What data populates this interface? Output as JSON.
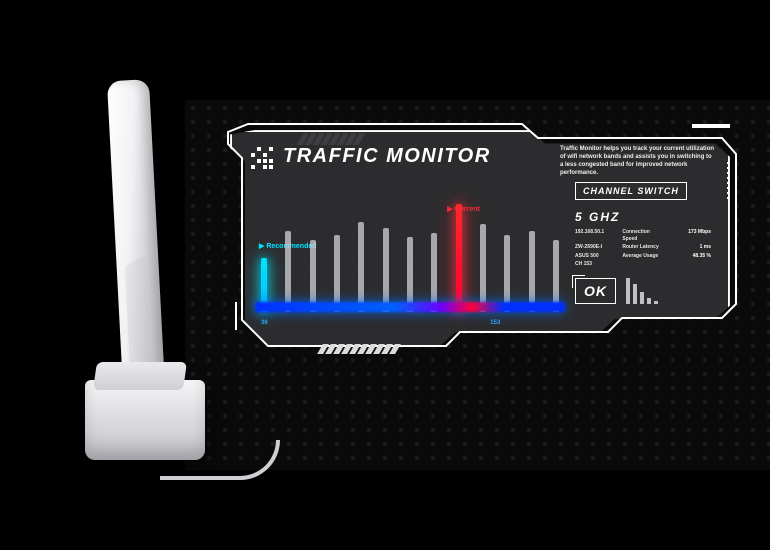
{
  "header": {
    "title": "TRAFFIC MONITOR",
    "description": "Traffic Monitor helps you track your current utilization of wifi network bands and assists you in switching to a less congested band for improved network performance."
  },
  "right": {
    "channel_switch_label": "CHANNEL SWITCH",
    "band": "5 GHZ",
    "network": {
      "ip_label": "192.168.50.1",
      "ssid_label": "ZW-Z690E-I",
      "device_label": "ASUS 500",
      "channel_label": "CH 153",
      "conn_speed_label": "Connection Speed",
      "router_latency_label": "Router Latency",
      "average_usage_label": "Average Usage",
      "conn_speed_value": "173 Mbps",
      "router_latency_value": "1 ms",
      "average_usage_value": "48.35 %"
    },
    "ok_label": "OK",
    "mini_bars": [
      26,
      20,
      12,
      6,
      3
    ]
  },
  "chart": {
    "type": "bar",
    "bars": [
      {
        "height_pct": 48,
        "kind": "glow-blue",
        "tag": "recommended"
      },
      {
        "height_pct": 72,
        "kind": "default"
      },
      {
        "height_pct": 64,
        "kind": "default"
      },
      {
        "height_pct": 68,
        "kind": "default"
      },
      {
        "height_pct": 80,
        "kind": "default"
      },
      {
        "height_pct": 74,
        "kind": "default"
      },
      {
        "height_pct": 66,
        "kind": "default"
      },
      {
        "height_pct": 70,
        "kind": "default"
      },
      {
        "height_pct": 96,
        "kind": "glow-red",
        "tag": "current"
      },
      {
        "height_pct": 78,
        "kind": "default"
      },
      {
        "height_pct": 68,
        "kind": "default"
      },
      {
        "height_pct": 72,
        "kind": "default"
      },
      {
        "height_pct": 64,
        "kind": "default"
      }
    ],
    "labels": {
      "recommended": "▶ Recommended",
      "current": "▶ Current"
    },
    "x_start": "36",
    "x_highlight": "153",
    "colors": {
      "default_bar": "#d2d2d7",
      "recommended": "#00e5ff",
      "current": "#ff2a3a",
      "baseline_start": "#0030ff",
      "baseline_end": "#ff003a",
      "panel_bg": "#303032",
      "frame": "#ffffff"
    }
  }
}
